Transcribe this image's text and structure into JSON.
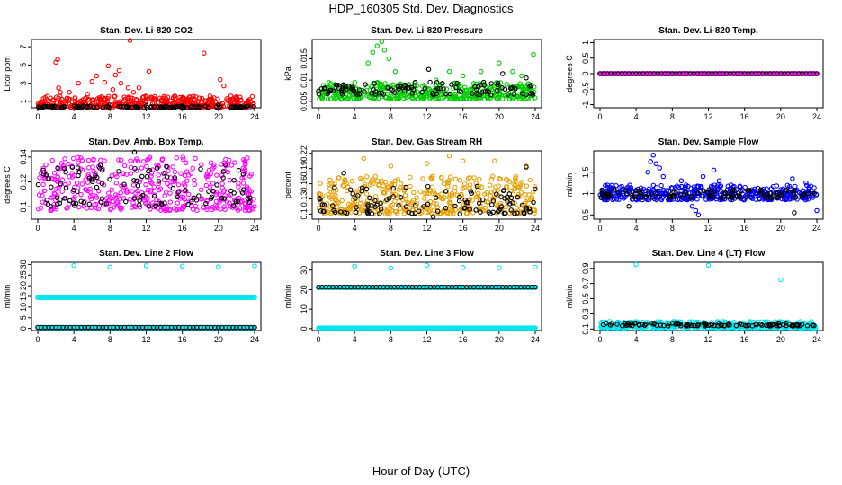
{
  "figure": {
    "title": "HDP_160305  Std. Dev. Diagnostics",
    "xlabel": "Hour of Day (UTC)"
  },
  "chart_data": [
    {
      "type": "scatter",
      "title": "Stan. Dev. Li-820 CO2",
      "ylabel": "Licor ppm",
      "xlim": [
        0,
        24
      ],
      "xticks": [
        0,
        4,
        8,
        12,
        16,
        20,
        24
      ],
      "ylim": [
        0.3,
        7.8
      ],
      "yticks": [
        1,
        3,
        5,
        7
      ],
      "series": [
        {
          "color": "#ff0000",
          "points": [
            [
              2.0,
              5.3
            ],
            [
              2.2,
              5.6
            ],
            [
              2.3,
              2.5
            ],
            [
              2.5,
              2.0
            ],
            [
              3.5,
              2.0
            ],
            [
              4.5,
              3.0
            ],
            [
              5.5,
              1.8
            ],
            [
              6.0,
              3.2
            ],
            [
              6.5,
              3.8
            ],
            [
              7.4,
              3.1
            ],
            [
              7.8,
              4.9
            ],
            [
              8.3,
              2.3
            ],
            [
              8.6,
              3.9
            ],
            [
              9.0,
              4.4
            ],
            [
              9.2,
              3.0
            ],
            [
              10.0,
              2.5
            ],
            [
              10.2,
              7.7
            ],
            [
              10.6,
              2.0
            ],
            [
              11.2,
              2.5
            ],
            [
              12.0,
              1.5
            ],
            [
              12.3,
              4.3
            ],
            [
              13.0,
              1.2
            ],
            [
              14.0,
              1.1
            ],
            [
              15.0,
              0.9
            ],
            [
              16.0,
              1.3
            ],
            [
              17.0,
              1.1
            ],
            [
              18.4,
              6.3
            ],
            [
              19.0,
              1.2
            ],
            [
              19.5,
              1.4
            ],
            [
              20.2,
              3.4
            ],
            [
              20.6,
              2.7
            ],
            [
              21.0,
              1.1
            ],
            [
              22.0,
              1.0
            ],
            [
              23.0,
              0.8
            ]
          ],
          "band": [
            0.3,
            1.6
          ]
        },
        {
          "color": "#000000",
          "band": [
            0.3,
            0.5
          ],
          "points": [
            [
              4.0,
              0.5
            ],
            [
              8.0,
              0.6
            ],
            [
              12.0,
              0.5
            ],
            [
              16.0,
              0.5
            ],
            [
              20.0,
              0.6
            ]
          ]
        }
      ]
    },
    {
      "type": "scatter",
      "title": "Stan. Dev. Li-820 Pressure",
      "ylabel": "kPa",
      "xlim": [
        0,
        24
      ],
      "xticks": [
        0,
        4,
        8,
        12,
        16,
        20,
        24
      ],
      "ylim": [
        0.0035,
        0.0195
      ],
      "yticks": [
        0.005,
        0.01,
        0.015
      ],
      "series": [
        {
          "color": "#00cc00",
          "band": [
            0.0055,
            0.0095
          ],
          "points": [
            [
              5.5,
              0.014
            ],
            [
              6.0,
              0.0165
            ],
            [
              6.5,
              0.018
            ],
            [
              7.0,
              0.019
            ],
            [
              7.3,
              0.017
            ],
            [
              7.8,
              0.015
            ],
            [
              8.5,
              0.012
            ],
            [
              10.0,
              0.009
            ],
            [
              13.0,
              0.01
            ],
            [
              14.5,
              0.012
            ],
            [
              16.0,
              0.011
            ],
            [
              18.0,
              0.012
            ],
            [
              20.0,
              0.014
            ],
            [
              21.5,
              0.012
            ],
            [
              22.5,
              0.011
            ],
            [
              23.8,
              0.016
            ]
          ]
        },
        {
          "color": "#000000",
          "band": [
            0.0065,
            0.0095
          ],
          "points": [
            [
              12.2,
              0.0125
            ],
            [
              13.2,
              0.008
            ],
            [
              20.4,
              0.0115
            ],
            [
              23.0,
              0.0105
            ]
          ]
        }
      ]
    },
    {
      "type": "scatter",
      "title": "Stan. Dev. Li-820 Temp.",
      "ylabel": "degrees C",
      "xlim": [
        0,
        24
      ],
      "xticks": [
        0,
        4,
        8,
        12,
        16,
        20,
        24
      ],
      "ylim": [
        -1.1,
        1.1
      ],
      "yticks": [
        -1.0,
        -0.5,
        0.0,
        0.5,
        1.0
      ],
      "series": [
        {
          "color": "#ff00ff",
          "line": 0.0
        },
        {
          "color": "#000000",
          "line": 0.0,
          "sparse": true
        }
      ]
    },
    {
      "type": "scatter",
      "title": "Stan. Dev. Amb. Box Temp.",
      "ylabel": "degrees C",
      "xlim": [
        0,
        24
      ],
      "xticks": [
        0,
        4,
        8,
        12,
        16,
        20,
        24
      ],
      "ylim": [
        0.09,
        0.145
      ],
      "yticks": [
        0.1,
        0.12,
        0.14
      ],
      "series": [
        {
          "color": "#ff00ff",
          "band": [
            0.097,
            0.14
          ],
          "points": []
        },
        {
          "color": "#000000",
          "band": [
            0.1,
            0.134
          ],
          "points": [
            [
              10.7,
              0.144
            ]
          ]
        }
      ]
    },
    {
      "type": "scatter",
      "title": "Stan. Dev. Gas Stream RH",
      "ylabel": "percent",
      "xlim": [
        0,
        24
      ],
      "xticks": [
        0,
        4,
        8,
        12,
        16,
        20,
        24
      ],
      "ylim": [
        0.09,
        0.225
      ],
      "yticks": [
        0.1,
        0.13,
        0.16,
        0.19,
        0.22
      ],
      "series": [
        {
          "color": "#e69f00",
          "band": [
            0.1,
            0.175
          ],
          "points": [
            [
              5.0,
              0.21
            ],
            [
              8.0,
              0.195
            ],
            [
              12.0,
              0.2
            ],
            [
              14.5,
              0.215
            ],
            [
              16.0,
              0.205
            ],
            [
              19.5,
              0.205
            ],
            [
              23.0,
              0.195
            ]
          ]
        },
        {
          "color": "#000000",
          "band": [
            0.1,
            0.155
          ],
          "points": [
            [
              2.8,
              0.181
            ],
            [
              12.7,
              0.095
            ],
            [
              23.0,
              0.193
            ]
          ]
        }
      ]
    },
    {
      "type": "scatter",
      "title": "Stan. Dev. Sample Flow",
      "ylabel": "ml/min",
      "xlim": [
        0,
        24
      ],
      "xticks": [
        0,
        4,
        8,
        12,
        16,
        20,
        24
      ],
      "ylim": [
        0.4,
        2.0
      ],
      "yticks": [
        0.5,
        1.0,
        1.5
      ],
      "series": [
        {
          "color": "#0000ff",
          "band": [
            0.85,
            1.2
          ],
          "points": [
            [
              5.3,
              1.5
            ],
            [
              5.6,
              1.75
            ],
            [
              5.9,
              1.9
            ],
            [
              6.2,
              1.7
            ],
            [
              6.6,
              1.6
            ],
            [
              7.0,
              1.4
            ],
            [
              9.0,
              1.3
            ],
            [
              10.2,
              0.7
            ],
            [
              10.6,
              0.6
            ],
            [
              10.9,
              0.5
            ],
            [
              11.4,
              1.4
            ],
            [
              12.6,
              1.55
            ],
            [
              13.2,
              1.3
            ],
            [
              14.5,
              1.2
            ],
            [
              21.3,
              1.35
            ],
            [
              22.8,
              1.25
            ],
            [
              24.0,
              0.6
            ]
          ]
        },
        {
          "color": "#000000",
          "band": [
            0.9,
            1.1
          ],
          "points": [
            [
              3.2,
              0.7
            ],
            [
              21.5,
              0.55
            ]
          ]
        }
      ]
    },
    {
      "type": "scatter",
      "title": "Stan. Dev. Line 2 Flow",
      "ylabel": "ml/min",
      "xlim": [
        0,
        24
      ],
      "xticks": [
        0,
        4,
        8,
        12,
        16,
        20,
        24
      ],
      "ylim": [
        -1.0,
        31.0
      ],
      "yticks": [
        0,
        5,
        10,
        15,
        20,
        25,
        30
      ],
      "series": [
        {
          "color": "#00e5ee",
          "line": 14.5,
          "points": [
            [
              4.0,
              29.5
            ],
            [
              8.0,
              28.8
            ],
            [
              12.0,
              29.4
            ],
            [
              16.0,
              29.2
            ],
            [
              20.0,
              28.9
            ],
            [
              24.0,
              29.3
            ]
          ]
        },
        {
          "color": "#00e5ee",
          "line": 0.4
        },
        {
          "color": "#000000",
          "line": 0.5,
          "sparse": true
        }
      ]
    },
    {
      "type": "scatter",
      "title": "Stan. Dev. Line 3 Flow",
      "ylabel": "ml/min",
      "xlim": [
        0,
        24
      ],
      "xticks": [
        0,
        4,
        8,
        12,
        16,
        20,
        24
      ],
      "ylim": [
        -1.0,
        34.0
      ],
      "yticks": [
        0,
        10,
        20,
        30
      ],
      "series": [
        {
          "color": "#00e5ee",
          "line": 21.0,
          "points": [
            [
              4.0,
              32.0
            ],
            [
              8.0,
              31.0
            ],
            [
              12.0,
              32.4
            ],
            [
              16.0,
              31.3
            ],
            [
              20.0,
              31.2
            ],
            [
              24.0,
              31.5
            ]
          ]
        },
        {
          "color": "#00e5ee",
          "line": 0.3
        },
        {
          "color": "#000000",
          "line": 21.3,
          "sparse": true
        }
      ]
    },
    {
      "type": "scatter",
      "title": "Stan. Dev. Line 4 (LT) Flow",
      "ylabel": "ml/min",
      "xlim": [
        0,
        24
      ],
      "xticks": [
        0,
        4,
        8,
        12,
        16,
        20,
        24
      ],
      "ylim": [
        0.08,
        0.98
      ],
      "yticks": [
        0.1,
        0.3,
        0.5,
        0.7,
        0.9
      ],
      "series": [
        {
          "color": "#00e5ee",
          "band": [
            0.11,
            0.2
          ],
          "points": [
            [
              4.0,
              0.95
            ],
            [
              12.0,
              0.94
            ],
            [
              20.0,
              0.75
            ]
          ]
        },
        {
          "color": "#000000",
          "band": [
            0.14,
            0.18
          ],
          "points": []
        }
      ]
    }
  ]
}
